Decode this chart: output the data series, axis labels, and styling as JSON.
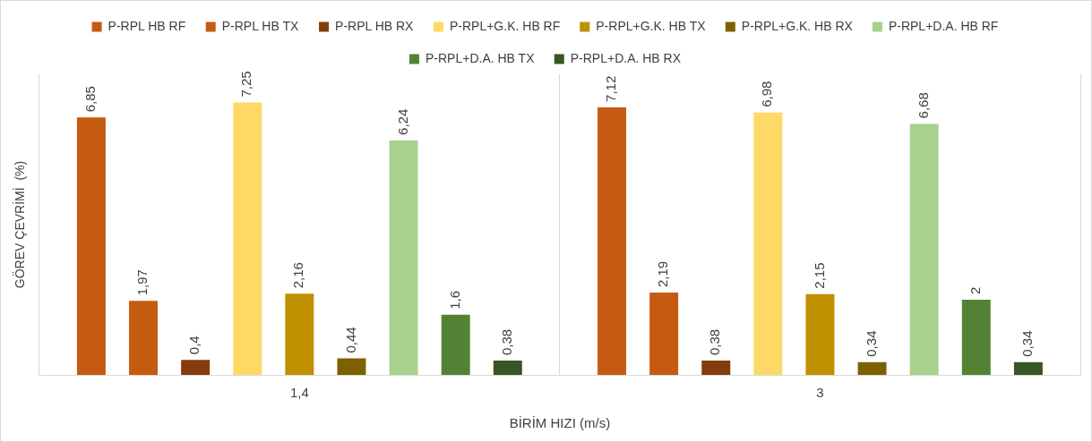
{
  "chart_data": {
    "type": "bar",
    "xlabel": "BİRİM HIZI (m/s)",
    "ylabel": "GÖREV ÇEVRİMİ  (%)",
    "categories": [
      "1,4",
      "3"
    ],
    "legend": "top",
    "grid": "x",
    "series": [
      {
        "name": "P-RPL HB RF",
        "color": "#c55a11",
        "values": [
          6.85,
          7.12
        ],
        "value_labels": [
          "6,85",
          "7,12"
        ]
      },
      {
        "name": "P-RPL HB TX",
        "color": "#c55a11",
        "values": [
          1.97,
          2.19
        ],
        "value_labels": [
          "1,97",
          "2,19"
        ]
      },
      {
        "name": "P-RPL HB RX",
        "color": "#843c0c",
        "values": [
          0.4,
          0.38
        ],
        "value_labels": [
          "0,4",
          "0,38"
        ]
      },
      {
        "name": "P-RPL+G.K. HB RF",
        "color": "#ffd966",
        "values": [
          7.25,
          6.98
        ],
        "value_labels": [
          "7,25",
          "6,98"
        ]
      },
      {
        "name": "P-RPL+G.K. HB TX",
        "color": "#bf9000",
        "values": [
          2.16,
          2.15
        ],
        "value_labels": [
          "2,16",
          "2,15"
        ]
      },
      {
        "name": "P-RPL+G.K. HB RX",
        "color": "#7f6000",
        "values": [
          0.44,
          0.34
        ],
        "value_labels": [
          "0,44",
          "0,34"
        ]
      },
      {
        "name": "P-RPL+D.A. HB RF",
        "color": "#a9d18e",
        "values": [
          6.24,
          6.68
        ],
        "value_labels": [
          "6,24",
          "6,68"
        ]
      },
      {
        "name": "P-RPL+D.A. HB TX",
        "color": "#548235",
        "values": [
          1.6,
          2
        ],
        "value_labels": [
          "1,6",
          "2"
        ]
      },
      {
        "name": "P-RPL+D.A. HB RX",
        "color": "#375623",
        "values": [
          0.38,
          0.34
        ],
        "value_labels": [
          "0,38",
          "0,34"
        ]
      }
    ]
  }
}
